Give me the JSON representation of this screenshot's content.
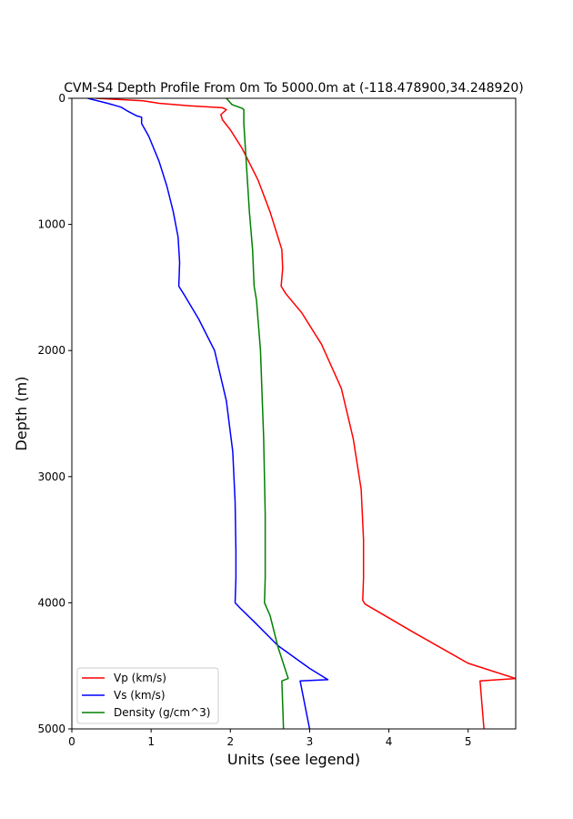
{
  "chart_data": {
    "type": "line",
    "title": "CVM-S4 Depth Profile From 0m To 5000.0m at (-118.478900,34.248920)",
    "xlabel": "Units (see legend)",
    "ylabel": "Depth (m)",
    "xlim": [
      0,
      5.6
    ],
    "ylim": [
      0,
      5000
    ],
    "y_inverted": true,
    "xticks": [
      0,
      1,
      2,
      3,
      4,
      5
    ],
    "yticks": [
      0,
      1000,
      2000,
      3000,
      4000,
      5000
    ],
    "grid": false,
    "legend_position": "lower-left",
    "series": [
      {
        "name": "Vp (km/s)",
        "color": "#ff0000",
        "points": [
          [
            0.3,
            0
          ],
          [
            0.9,
            20
          ],
          [
            1.1,
            40
          ],
          [
            1.48,
            60
          ],
          [
            1.9,
            75
          ],
          [
            1.95,
            90
          ],
          [
            1.88,
            130
          ],
          [
            1.9,
            170
          ],
          [
            2.0,
            250
          ],
          [
            2.15,
            400
          ],
          [
            2.35,
            650
          ],
          [
            2.5,
            900
          ],
          [
            2.6,
            1100
          ],
          [
            2.65,
            1200
          ],
          [
            2.66,
            1350
          ],
          [
            2.64,
            1490
          ],
          [
            2.7,
            1550
          ],
          [
            2.9,
            1700
          ],
          [
            3.15,
            1950
          ],
          [
            3.4,
            2300
          ],
          [
            3.55,
            2700
          ],
          [
            3.65,
            3100
          ],
          [
            3.68,
            3500
          ],
          [
            3.68,
            3800
          ],
          [
            3.67,
            3980
          ],
          [
            3.7,
            4010
          ],
          [
            4.3,
            4230
          ],
          [
            5.0,
            4480
          ],
          [
            5.6,
            4600
          ],
          [
            5.15,
            4620
          ],
          [
            5.2,
            5000
          ]
        ]
      },
      {
        "name": "Vs (km/s)",
        "color": "#0000ff",
        "points": [
          [
            0.2,
            0
          ],
          [
            0.45,
            40
          ],
          [
            0.62,
            70
          ],
          [
            0.7,
            100
          ],
          [
            0.82,
            140
          ],
          [
            0.88,
            150
          ],
          [
            0.88,
            200
          ],
          [
            0.97,
            300
          ],
          [
            1.1,
            500
          ],
          [
            1.2,
            700
          ],
          [
            1.28,
            900
          ],
          [
            1.34,
            1100
          ],
          [
            1.36,
            1300
          ],
          [
            1.35,
            1490
          ],
          [
            1.42,
            1560
          ],
          [
            1.6,
            1750
          ],
          [
            1.8,
            2000
          ],
          [
            1.95,
            2400
          ],
          [
            2.03,
            2800
          ],
          [
            2.06,
            3200
          ],
          [
            2.07,
            3600
          ],
          [
            2.07,
            3800
          ],
          [
            2.06,
            4000
          ],
          [
            2.12,
            4040
          ],
          [
            2.3,
            4150
          ],
          [
            2.6,
            4340
          ],
          [
            3.0,
            4520
          ],
          [
            3.23,
            4610
          ],
          [
            2.88,
            4620
          ],
          [
            3.0,
            5000
          ]
        ]
      },
      {
        "name": "Density (g/cm^3)",
        "color": "#008000",
        "points": [
          [
            1.95,
            0
          ],
          [
            2.02,
            50
          ],
          [
            2.15,
            80
          ],
          [
            2.17,
            90
          ],
          [
            2.17,
            200
          ],
          [
            2.2,
            500
          ],
          [
            2.24,
            900
          ],
          [
            2.28,
            1200
          ],
          [
            2.3,
            1490
          ],
          [
            2.33,
            1600
          ],
          [
            2.38,
            2000
          ],
          [
            2.42,
            2700
          ],
          [
            2.44,
            3300
          ],
          [
            2.44,
            3800
          ],
          [
            2.43,
            4000
          ],
          [
            2.5,
            4100
          ],
          [
            2.6,
            4350
          ],
          [
            2.73,
            4600
          ],
          [
            2.65,
            4620
          ],
          [
            2.67,
            5000
          ]
        ]
      }
    ]
  }
}
